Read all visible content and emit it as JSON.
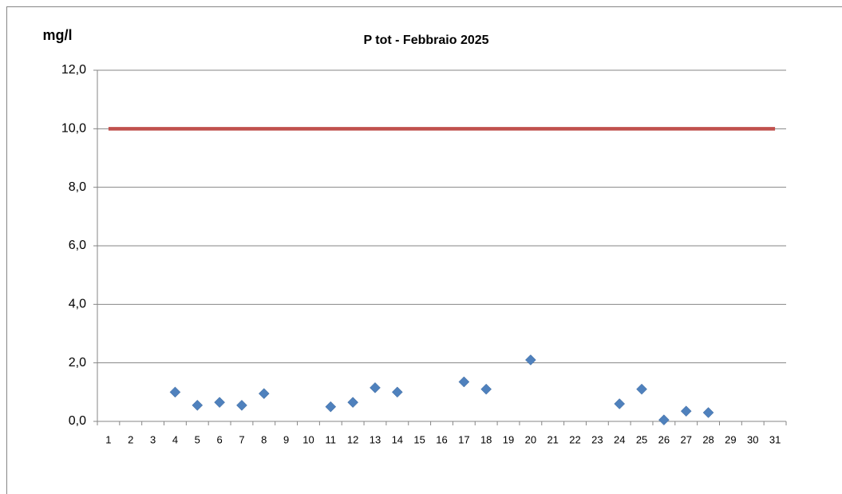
{
  "chart_data": {
    "type": "line",
    "title": "P tot - Febbraio 2025",
    "y_label": "mg/l",
    "categories": [
      "1",
      "2",
      "3",
      "4",
      "5",
      "6",
      "7",
      "8",
      "9",
      "10",
      "11",
      "12",
      "13",
      "14",
      "15",
      "16",
      "17",
      "18",
      "19",
      "20",
      "21",
      "22",
      "23",
      "24",
      "25",
      "26",
      "27",
      "28",
      "29",
      "30",
      "31"
    ],
    "series": [
      {
        "color": "#4f81bd",
        "mode": "markers",
        "values": [
          null,
          null,
          null,
          1.0,
          0.55,
          0.65,
          0.55,
          0.95,
          null,
          null,
          0.5,
          0.65,
          1.15,
          1.0,
          null,
          null,
          1.35,
          1.1,
          null,
          2.1,
          null,
          null,
          null,
          0.6,
          1.1,
          0.05,
          0.35,
          0.3,
          null,
          null,
          null
        ]
      },
      {
        "color": "#c0504d",
        "mode": "line",
        "values": [
          10,
          10,
          10,
          10,
          10,
          10,
          10,
          10,
          10,
          10,
          10,
          10,
          10,
          10,
          10,
          10,
          10,
          10,
          10,
          10,
          10,
          10,
          10,
          10,
          10,
          10,
          10,
          10,
          10,
          10,
          10
        ]
      }
    ],
    "ylim": [
      0,
      12
    ],
    "yticks": [
      {
        "value": 0,
        "label": "0,0"
      },
      {
        "value": 2,
        "label": "2,0"
      },
      {
        "value": 4,
        "label": "4,0"
      },
      {
        "value": 6,
        "label": "6,0"
      },
      {
        "value": 8,
        "label": "8,0"
      },
      {
        "value": 10,
        "label": "10,0"
      },
      {
        "value": 12,
        "label": "12,0"
      }
    ],
    "grid": true
  }
}
